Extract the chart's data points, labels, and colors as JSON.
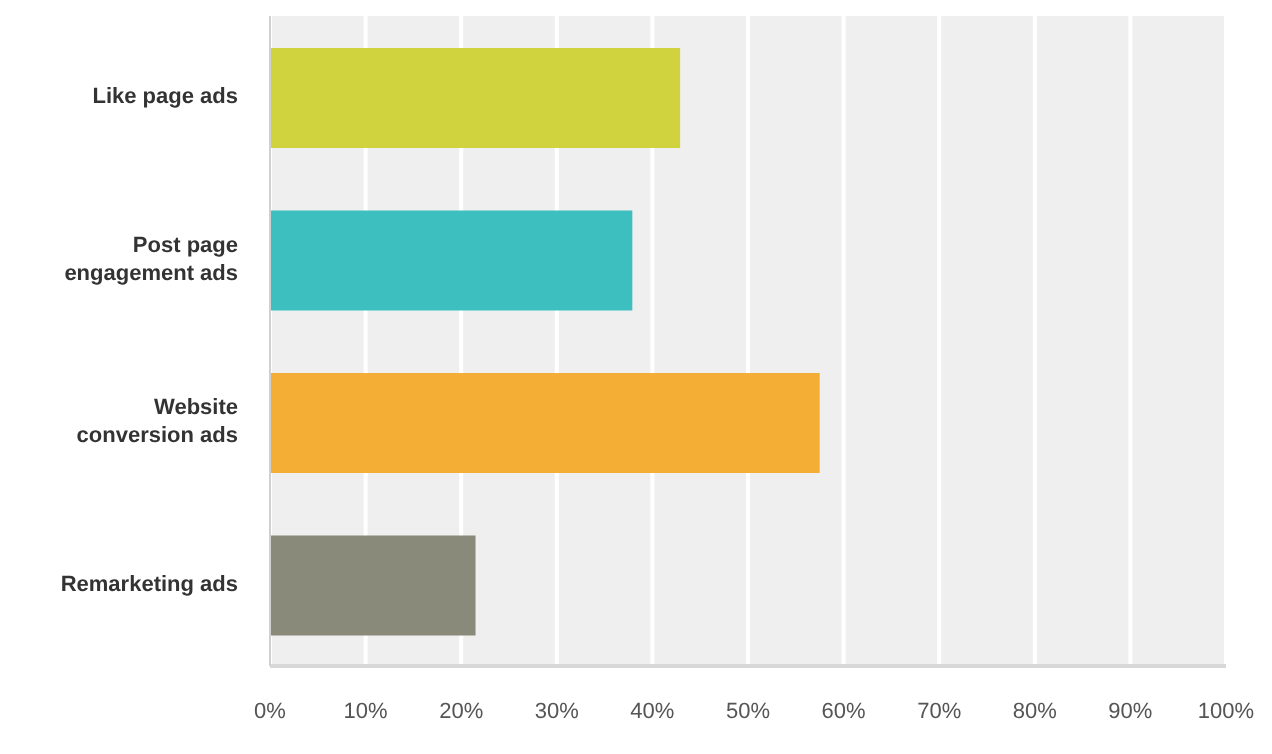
{
  "chart_data": {
    "type": "bar",
    "orientation": "horizontal",
    "categories": [
      "Like page ads",
      "Post page engagement ads",
      "Website conversion ads",
      "Remarketing ads"
    ],
    "values": [
      42.9,
      37.9,
      57.5,
      21.5
    ],
    "colors": [
      "#d0d33e",
      "#3dbfc0",
      "#f4ae35",
      "#8a8a7b"
    ],
    "xlim": [
      0,
      100
    ],
    "xticks": [
      {
        "value": 0,
        "label": "0%"
      },
      {
        "value": 10,
        "label": "10%"
      },
      {
        "value": 20,
        "label": "20%"
      },
      {
        "value": 30,
        "label": "30%"
      },
      {
        "value": 40,
        "label": "40%"
      },
      {
        "value": 50,
        "label": "50%"
      },
      {
        "value": 60,
        "label": "60%"
      },
      {
        "value": 70,
        "label": "70%"
      },
      {
        "value": 80,
        "label": "80%"
      },
      {
        "value": 90,
        "label": "90%"
      },
      {
        "value": 100,
        "label": "100%"
      }
    ],
    "grid": "x"
  }
}
